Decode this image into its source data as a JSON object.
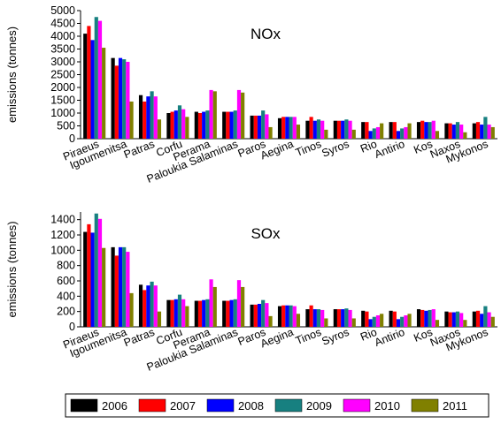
{
  "chart_data": [
    {
      "type": "bar",
      "title": "NOx",
      "xlabel": "",
      "ylabel": "emissions (tonnes)",
      "ylim": [
        0,
        5000
      ],
      "yticks": [
        0,
        500,
        1000,
        1500,
        2000,
        2500,
        3000,
        3500,
        4000,
        4500,
        5000
      ],
      "categories": [
        "Piraeus",
        "Igoumenitsa",
        "Patras",
        "Corfu",
        "Perama",
        "Paloukia Salaminas",
        "Paros",
        "Aegina",
        "Tinos",
        "Syros",
        "Rio",
        "Antirio",
        "Kos",
        "Naxos",
        "Mykonos"
      ],
      "series": [
        {
          "name": "2006",
          "color": "#000000",
          "values": [
            4100,
            3150,
            1700,
            1000,
            1050,
            1050,
            900,
            800,
            700,
            700,
            650,
            650,
            650,
            600,
            600
          ]
        },
        {
          "name": "2007",
          "color": "#ff0000",
          "values": [
            4400,
            2850,
            1450,
            1050,
            1000,
            1050,
            900,
            850,
            850,
            700,
            650,
            650,
            700,
            600,
            650
          ]
        },
        {
          "name": "2008",
          "color": "#0000ff",
          "values": [
            3850,
            3150,
            1650,
            1100,
            1050,
            1050,
            900,
            850,
            700,
            700,
            300,
            300,
            650,
            550,
            550
          ]
        },
        {
          "name": "2009",
          "color": "#178080",
          "values": [
            4750,
            3100,
            1850,
            1300,
            1100,
            1100,
            1100,
            850,
            750,
            750,
            400,
            400,
            650,
            650,
            850
          ]
        },
        {
          "name": "2010",
          "color": "#ff00ff",
          "values": [
            4600,
            3000,
            1650,
            1150,
            1900,
            1900,
            950,
            850,
            700,
            700,
            450,
            450,
            700,
            550,
            550
          ]
        },
        {
          "name": "2011",
          "color": "#808000",
          "values": [
            3550,
            1450,
            750,
            850,
            1850,
            1800,
            450,
            550,
            350,
            350,
            600,
            600,
            300,
            250,
            450
          ]
        }
      ]
    },
    {
      "type": "bar",
      "title": "SOx",
      "xlabel": "",
      "ylabel": "emissions (tonnes)",
      "ylim": [
        0,
        1500
      ],
      "yticks": [
        0,
        200,
        400,
        600,
        800,
        1000,
        1200,
        1400
      ],
      "categories": [
        "Piraeus",
        "Igoumenitsa",
        "Patras",
        "Corfu",
        "Perama",
        "Paloukia Salaminas",
        "Paros",
        "Aegina",
        "Tinos",
        "Syros",
        "Rio",
        "Antirio",
        "Kos",
        "Naxos",
        "Mykonos"
      ],
      "series": [
        {
          "name": "2006",
          "color": "#000000",
          "values": [
            1240,
            1040,
            550,
            350,
            340,
            340,
            290,
            270,
            230,
            230,
            210,
            210,
            230,
            200,
            200
          ]
        },
        {
          "name": "2007",
          "color": "#ff0000",
          "values": [
            1340,
            930,
            480,
            350,
            340,
            340,
            290,
            280,
            280,
            230,
            200,
            200,
            220,
            190,
            210
          ]
        },
        {
          "name": "2008",
          "color": "#0000ff",
          "values": [
            1230,
            1040,
            540,
            360,
            350,
            350,
            300,
            280,
            230,
            230,
            100,
            100,
            210,
            190,
            170
          ]
        },
        {
          "name": "2009",
          "color": "#178080",
          "values": [
            1480,
            1040,
            590,
            420,
            360,
            360,
            350,
            280,
            230,
            240,
            130,
            130,
            220,
            200,
            270
          ]
        },
        {
          "name": "2010",
          "color": "#ff00ff",
          "values": [
            1410,
            980,
            540,
            360,
            620,
            610,
            310,
            270,
            220,
            220,
            150,
            150,
            230,
            180,
            190
          ]
        },
        {
          "name": "2011",
          "color": "#808000",
          "values": [
            1030,
            440,
            200,
            270,
            520,
            520,
            140,
            170,
            110,
            110,
            170,
            170,
            90,
            90,
            130
          ]
        }
      ]
    }
  ],
  "legend": {
    "placement": "bottom",
    "entries": [
      {
        "label": "2006",
        "color": "#000000"
      },
      {
        "label": "2007",
        "color": "#ff0000"
      },
      {
        "label": "2008",
        "color": "#0000ff"
      },
      {
        "label": "2009",
        "color": "#178080"
      },
      {
        "label": "2010",
        "color": "#ff00ff"
      },
      {
        "label": "2011",
        "color": "#808000"
      }
    ]
  }
}
